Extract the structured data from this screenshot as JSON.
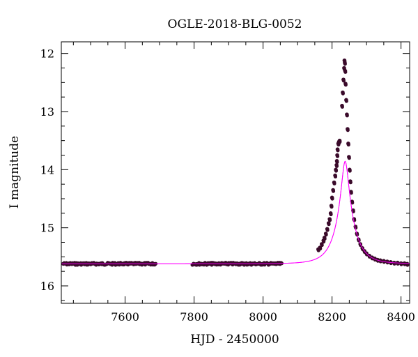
{
  "chart_data": {
    "type": "scatter",
    "title": "OGLE-2018-BLG-0052",
    "xlabel": "HJD - 2450000",
    "ylabel": "I magnitude",
    "xlim": [
      7415,
      8425
    ],
    "ylim": [
      16.3,
      11.8
    ],
    "y_inverted": true,
    "xticks_major": [
      7600,
      7800,
      8000,
      8200,
      8400
    ],
    "xticks_minor_step": 50,
    "yticks_major": [
      12,
      13,
      14,
      15,
      16
    ],
    "yticks_minor_step": 0.25,
    "colors": {
      "points": "#3a0a2a",
      "model": "#ff00ff",
      "axes": "#000000"
    },
    "model_curve": {
      "description_free": false,
      "baseline_mag": 15.62,
      "t0": 8238,
      "u0": 0.2,
      "tE": 47
    },
    "series": [
      {
        "kind": "observations",
        "segments": [
          {
            "x_range": [
              7420,
              7690
            ],
            "y_center": 15.62,
            "scatter": 0.02
          },
          {
            "x_range": [
              7795,
              8055
            ],
            "y_center": 15.62,
            "scatter": 0.02
          }
        ],
        "points": [
          [
            8160,
            15.37
          ],
          [
            8165,
            15.34
          ],
          [
            8170,
            15.28
          ],
          [
            8175,
            15.22
          ],
          [
            8178,
            15.17
          ],
          [
            8182,
            15.1
          ],
          [
            8186,
            15.02
          ],
          [
            8190,
            14.92
          ],
          [
            8193,
            14.85
          ],
          [
            8196,
            14.75
          ],
          [
            8198,
            14.62
          ],
          [
            8200,
            14.48
          ],
          [
            8203,
            14.35
          ],
          [
            8206,
            14.22
          ],
          [
            8209,
            14.1
          ],
          [
            8211,
            14.0
          ],
          [
            8213,
            13.92
          ],
          [
            8214,
            13.85
          ],
          [
            8215,
            13.75
          ],
          [
            8216,
            13.65
          ],
          [
            8218,
            13.55
          ],
          [
            8220,
            13.52
          ],
          [
            8222,
            13.5
          ],
          [
            8229,
            12.9
          ],
          [
            8231,
            12.67
          ],
          [
            8233,
            12.45
          ],
          [
            8235,
            12.25
          ],
          [
            8236,
            12.12
          ],
          [
            8237,
            12.16
          ],
          [
            8238,
            12.3
          ],
          [
            8239,
            12.52
          ],
          [
            8241,
            12.8
          ],
          [
            8243,
            13.05
          ],
          [
            8245,
            13.3
          ],
          [
            8247,
            13.55
          ],
          [
            8249,
            13.78
          ],
          [
            8251,
            14.0
          ],
          [
            8253,
            14.2
          ],
          [
            8255,
            14.38
          ],
          [
            8258,
            14.55
          ],
          [
            8261,
            14.7
          ],
          [
            8264,
            14.85
          ],
          [
            8268,
            14.98
          ],
          [
            8272,
            15.1
          ],
          [
            8277,
            15.2
          ],
          [
            8282,
            15.28
          ],
          [
            8288,
            15.35
          ],
          [
            8294,
            15.4
          ],
          [
            8300,
            15.44
          ],
          [
            8308,
            15.48
          ],
          [
            8316,
            15.51
          ],
          [
            8324,
            15.53
          ],
          [
            8332,
            15.55
          ],
          [
            8340,
            15.56
          ],
          [
            8350,
            15.57
          ],
          [
            8360,
            15.58
          ],
          [
            8370,
            15.59
          ],
          [
            8380,
            15.6
          ],
          [
            8390,
            15.6
          ],
          [
            8400,
            15.61
          ],
          [
            8410,
            15.61
          ],
          [
            8418,
            15.62
          ]
        ]
      }
    ]
  }
}
